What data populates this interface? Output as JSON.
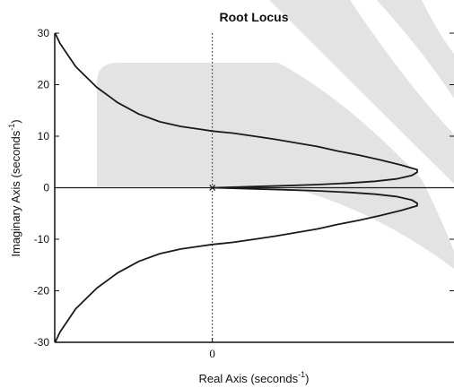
{
  "chart_data": {
    "type": "line",
    "title": "Root Locus",
    "xlabel": "Real Axis (seconds",
    "ylabel": "Imaginary Axis (seconds",
    "unit_exponent": "-1",
    "label_suffix": ")",
    "xlim": [
      -15,
      23
    ],
    "ylim": [
      -30,
      30
    ],
    "x_ticks": [
      0
    ],
    "x_tick_labels": [
      "0"
    ],
    "y_ticks": [
      30,
      20,
      10,
      0,
      -10,
      -20,
      -30
    ],
    "y_tick_labels": [
      "30",
      "20",
      "10",
      "0",
      "-10",
      "-20",
      "-30"
    ],
    "grid": false,
    "legend": "none",
    "series": [
      {
        "x": [
          -15.2,
          -14.5,
          -13,
          -11,
          -9,
          -7,
          -5,
          -3,
          -1,
          0,
          2,
          4,
          6,
          8,
          10,
          12,
          14,
          16,
          18,
          19.5,
          19.5,
          19,
          17.5,
          15.5,
          13,
          10,
          7,
          4,
          2,
          0.8,
          0
        ],
        "y": [
          31,
          28,
          23.5,
          19.5,
          16.5,
          14.3,
          12.8,
          11.9,
          11.3,
          11,
          10.6,
          10,
          9.4,
          8.7,
          8,
          7.1,
          6.3,
          5.4,
          4.4,
          3.5,
          3,
          2.4,
          1.7,
          1.25,
          0.9,
          0.6,
          0.4,
          0.22,
          0.1,
          0.03,
          0
        ]
      },
      {
        "x": [
          -15.2,
          -14.5,
          -13,
          -11,
          -9,
          -7,
          -5,
          -3,
          -1,
          0,
          2,
          4,
          6,
          8,
          10,
          12,
          14,
          16,
          18,
          19.5,
          19.5,
          19,
          17.5,
          15.5,
          13,
          10,
          7,
          4,
          2,
          0.8,
          0
        ],
        "y": [
          -31,
          -28,
          -23.5,
          -19.5,
          -16.5,
          -14.3,
          -12.8,
          -11.9,
          -11.3,
          -11,
          -10.6,
          -10,
          -9.4,
          -8.7,
          -8,
          -7.1,
          -6.3,
          -5.4,
          -4.4,
          -3.5,
          -3,
          -2.4,
          -1.7,
          -1.25,
          -0.9,
          -0.6,
          -0.4,
          -0.22,
          -0.1,
          -0.03,
          0
        ]
      },
      {
        "x": [
          -15,
          23
        ],
        "y": [
          0,
          0
        ]
      }
    ],
    "poles": [
      {
        "x": 0,
        "y": 0
      }
    ],
    "colors": {
      "locus": "#1a1a1a",
      "axes": "#111111",
      "shading": "#e3e3e3"
    }
  }
}
